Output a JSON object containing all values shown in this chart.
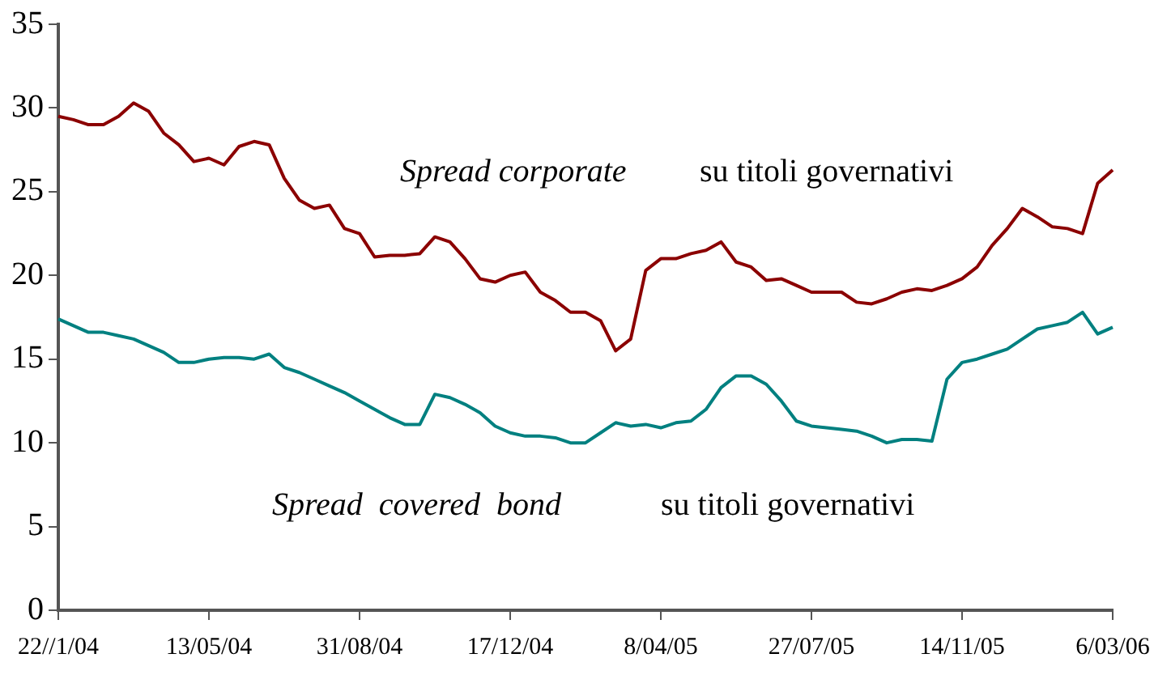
{
  "chart_data": {
    "type": "line",
    "categories": [
      "22//1/04",
      null,
      null,
      null,
      null,
      null,
      null,
      null,
      null,
      null,
      "13/05/04",
      null,
      null,
      null,
      null,
      null,
      null,
      null,
      null,
      null,
      "31/08/04",
      null,
      null,
      null,
      null,
      null,
      null,
      null,
      null,
      null,
      "17/12/04",
      null,
      null,
      null,
      null,
      null,
      null,
      null,
      null,
      null,
      "8/04/05",
      null,
      null,
      null,
      null,
      null,
      null,
      null,
      null,
      null,
      "27/07/05",
      null,
      null,
      null,
      null,
      null,
      null,
      null,
      null,
      null,
      "14/11/05",
      null,
      null,
      null,
      null,
      null,
      null,
      null,
      null,
      null,
      "6/03/06"
    ],
    "series": [
      {
        "color": "#8b0000",
        "values": [
          29.5,
          29.3,
          29,
          29,
          29.5,
          30.3,
          29.8,
          28.5,
          27.8,
          26.8,
          27,
          26.6,
          27.7,
          28,
          27.8,
          25.8,
          24.5,
          24,
          24.2,
          22.8,
          22.5,
          21.1,
          21.2,
          21.2,
          21.3,
          22.3,
          22,
          21,
          19.8,
          19.6,
          20,
          20.2,
          19,
          18.5,
          17.8,
          17.8,
          17.3,
          15.5,
          16.2,
          20.3,
          21,
          21,
          21.3,
          21.5,
          22,
          20.8,
          20.5,
          19.7,
          19.8,
          19.4,
          19,
          19,
          19,
          18.4,
          18.3,
          18.6,
          19,
          19.2,
          19.1,
          19.4,
          19.8,
          20.5,
          21.8,
          22.8,
          24,
          23.5,
          22.9,
          22.8,
          22.5,
          25.5,
          26.3
        ]
      },
      {
        "color": "#008080",
        "values": [
          17.4,
          17,
          16.6,
          16.6,
          16.4,
          16.2,
          15.8,
          15.4,
          14.8,
          14.8,
          15,
          15.1,
          15.1,
          15,
          15.3,
          14.5,
          14.2,
          13.8,
          13.4,
          13,
          12.5,
          12,
          11.5,
          11.1,
          11.1,
          12.9,
          12.7,
          12.3,
          11.8,
          11,
          10.6,
          10.4,
          10.4,
          10.3,
          10,
          10,
          10.6,
          11.2,
          11,
          11.1,
          10.9,
          11.2,
          11.3,
          12,
          13.3,
          14,
          14,
          13.5,
          12.5,
          11.3,
          11,
          10.9,
          10.8,
          10.7,
          10.4,
          10,
          10.2,
          10.2,
          10.1,
          13.8,
          14.8,
          15,
          15.3,
          15.6,
          16.2,
          16.8,
          17,
          17.2,
          17.8,
          16.5,
          16.9
        ]
      }
    ],
    "ylim": [
      0,
      35
    ],
    "yticks": [
      0,
      5,
      10,
      15,
      20,
      25,
      30,
      35
    ],
    "grid": false,
    "legend": false,
    "marker": "none",
    "line_style": "solid",
    "annotations": [
      "Spread corporate",
      "su titoli governativi",
      "Spread  covered  bond",
      "su titoli governativi"
    ]
  }
}
